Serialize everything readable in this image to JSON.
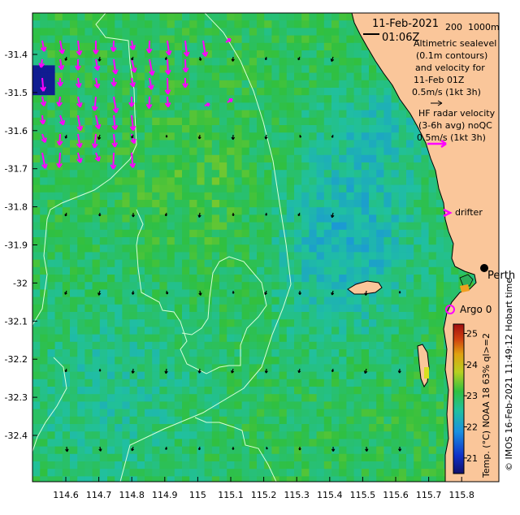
{
  "title": {
    "date": "11-Feb-2021",
    "time": "01:06Z"
  },
  "scale": {
    "contour_200": "200",
    "contour_1000": "1000m"
  },
  "legend": {
    "altimetry_lines": [
      "Altimetric sealevel",
      "(0.1m contours)",
      "and velocity for",
      "11-Feb 01Z",
      "0.5m/s (1kt 3h)"
    ],
    "hf_lines": [
      "HF radar velocity",
      "(3-6h avg) noQC",
      "0.5m/s (1kt 3h)"
    ],
    "drifter": "drifter",
    "argo": "Argo 0"
  },
  "city_label": "Perth",
  "credit": "© IMOS 16-Feb-2021 11:49:12 Hobart time",
  "colorbar": {
    "label": "Temp. (°C) NOAA 18 63% ql>=2",
    "ticks": [
      "25",
      "24",
      "23",
      "22",
      "21"
    ],
    "min": 20.5,
    "max": 25.3
  },
  "axes": {
    "lat_ticks": [
      "-31.4",
      "-31.5",
      "-31.6",
      "-31.7",
      "-31.8",
      "-31.9",
      "-32",
      "-32.1",
      "-32.2",
      "-32.3",
      "-32.4"
    ],
    "lon_ticks": [
      "114.6",
      "114.7",
      "114.8",
      "114.9",
      "115",
      "115.1",
      "115.2",
      "115.3",
      "115.4",
      "115.5",
      "115.6",
      "115.7",
      "115.8"
    ]
  },
  "colors": {
    "land": "#fac69a",
    "hf_arrow": "#ff00ff",
    "altimetry_arrow": "#000000",
    "contour": "#d0ffd0",
    "sst_low": "#1e3bd0",
    "sst_mid": "#22b86a",
    "sst_high": "#e0a020"
  }
}
